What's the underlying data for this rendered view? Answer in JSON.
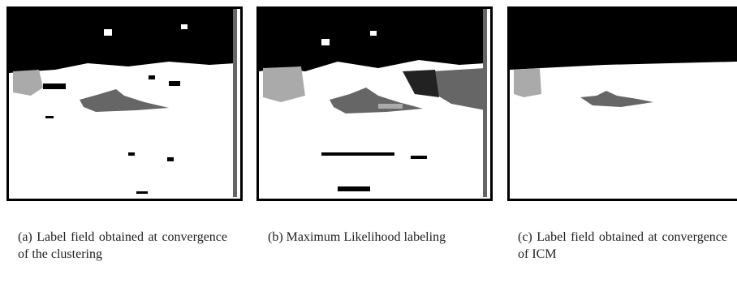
{
  "figures": [
    {
      "caption": "(a) Label field obtained at convergence of the clustering"
    },
    {
      "caption": "(b) Maximum Likelihood labeling"
    },
    {
      "caption": "(c) Label field obtained at convergence of ICM"
    }
  ]
}
